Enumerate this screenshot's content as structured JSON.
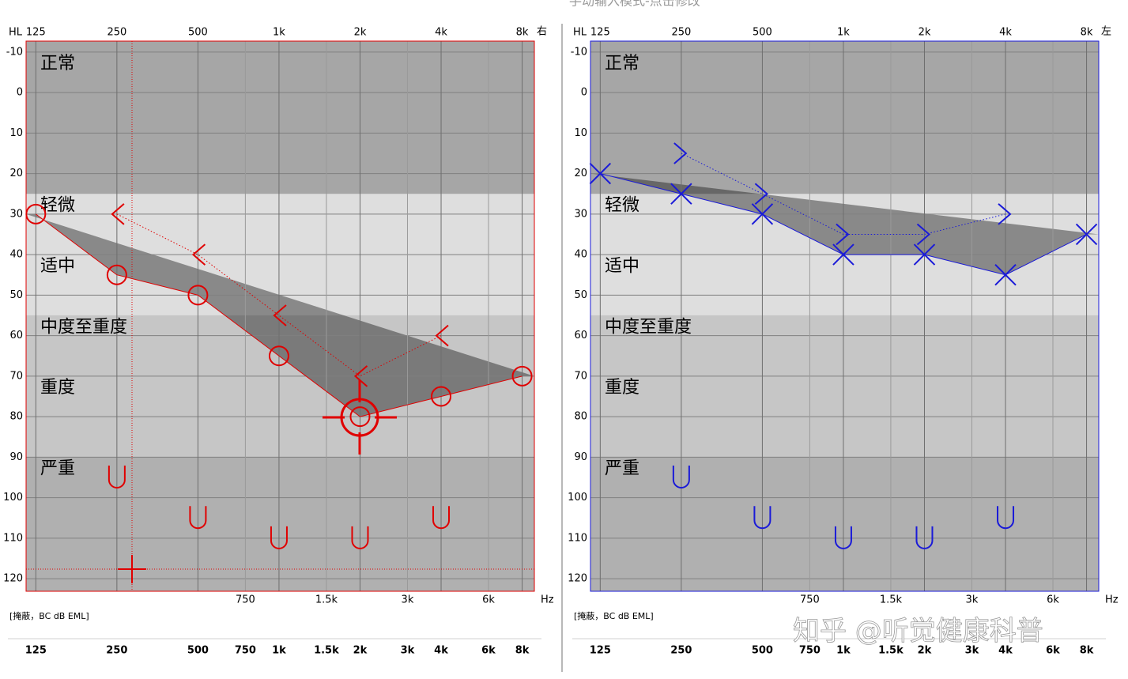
{
  "header": "手动输入模式-点击修改",
  "watermark": "知乎 @听觉健康科普",
  "chart_data": [
    {
      "type": "audiogram",
      "ear": "右",
      "y_label": "HL",
      "x_unit": "Hz",
      "footnote": "[掩蔽，BC dB EML]",
      "frame_color": "#e00000",
      "log_x": true,
      "grid": true,
      "x": [
        125,
        250,
        500,
        1000,
        2000,
        4000,
        8000
      ],
      "xlim": [
        115,
        8880
      ],
      "xticks": [
        125,
        250,
        500,
        {
          "value": 1000,
          "label": "1k"
        },
        {
          "value": 2000,
          "label": "2k"
        },
        {
          "value": 4000,
          "label": "4k"
        },
        {
          "value": 8000,
          "label": "8k"
        }
      ],
      "xticks_minor": [
        750,
        {
          "value": 1500,
          "label": "1.5k"
        },
        {
          "value": 3000,
          "label": "3k"
        },
        {
          "value": 6000,
          "label": "6k"
        }
      ],
      "ylim": [
        -12.7,
        123.1
      ],
      "yticks": [
        -10,
        0,
        10,
        20,
        30,
        40,
        50,
        60,
        70,
        80,
        90,
        100,
        110,
        120
      ],
      "bands": [
        {
          "label": "正常",
          "from": -10
        },
        {
          "label": "轻微",
          "from": 25
        },
        {
          "label": "适中",
          "from": 40
        },
        {
          "label": "中度至重度",
          "from": 55
        },
        {
          "label": "重度",
          "from": 70
        },
        {
          "label": "严重",
          "from": 90
        }
      ],
      "base_color": "#a6a6a6",
      "shade_bands": [
        {
          "from": 25,
          "color": "#dedede"
        },
        {
          "from": 55,
          "color": "#c6c6c6"
        },
        {
          "from": 90,
          "color": "#b0b0b0"
        }
      ],
      "shade_opacity": 0.38,
      "series": [
        {
          "marker": "circle",
          "color": "#e00000",
          "line": "solid",
          "values": [
            30,
            45,
            50,
            65,
            80,
            75,
            70
          ]
        },
        {
          "marker": "left-chevron",
          "color": "#e00000",
          "line": "dotted",
          "values": [
            null,
            30,
            40,
            55,
            70,
            60,
            null
          ]
        },
        {
          "marker": "u",
          "color": "#e00000",
          "line": "none",
          "values": [
            null,
            95,
            105,
            110,
            110,
            105,
            null
          ]
        }
      ]
    },
    {
      "type": "audiogram",
      "ear": "左",
      "y_label": "HL",
      "x_unit": "Hz",
      "footnote": "[掩蔽，BC dB EML]",
      "frame_color": "#1a1ad8",
      "log_x": true,
      "grid": true,
      "x": [
        125,
        250,
        500,
        1000,
        2000,
        4000,
        8000
      ],
      "xlim": [
        115,
        8880
      ],
      "xticks": [
        125,
        250,
        500,
        {
          "value": 1000,
          "label": "1k"
        },
        {
          "value": 2000,
          "label": "2k"
        },
        {
          "value": 4000,
          "label": "4k"
        },
        {
          "value": 8000,
          "label": "8k"
        }
      ],
      "xticks_minor": [
        750,
        {
          "value": 1500,
          "label": "1.5k"
        },
        {
          "value": 3000,
          "label": "3k"
        },
        {
          "value": 6000,
          "label": "6k"
        }
      ],
      "ylim": [
        -12.7,
        123.1
      ],
      "yticks": [
        -10,
        0,
        10,
        20,
        30,
        40,
        50,
        60,
        70,
        80,
        90,
        100,
        110,
        120
      ],
      "bands": [
        {
          "label": "正常",
          "from": -10
        },
        {
          "label": "轻微",
          "from": 25
        },
        {
          "label": "适中",
          "from": 40
        },
        {
          "label": "中度至重度",
          "from": 55
        },
        {
          "label": "重度",
          "from": 70
        },
        {
          "label": "严重",
          "from": 90
        }
      ],
      "base_color": "#a6a6a6",
      "shade_bands": [
        {
          "from": 25,
          "color": "#dedede"
        },
        {
          "from": 55,
          "color": "#c6c6c6"
        },
        {
          "from": 90,
          "color": "#b0b0b0"
        }
      ],
      "shade_opacity": 0.38,
      "series": [
        {
          "marker": "cross",
          "color": "#1a1ad8",
          "line": "solid",
          "values": [
            20,
            25,
            30,
            40,
            40,
            45,
            35
          ]
        },
        {
          "marker": "right-chevron",
          "color": "#1a1ad8",
          "line": "dotted",
          "values": [
            null,
            15,
            25,
            35,
            35,
            30,
            null
          ]
        },
        {
          "marker": "u",
          "color": "#1a1ad8",
          "line": "none",
          "values": [
            null,
            95,
            105,
            110,
            110,
            105,
            null
          ]
        }
      ]
    }
  ]
}
